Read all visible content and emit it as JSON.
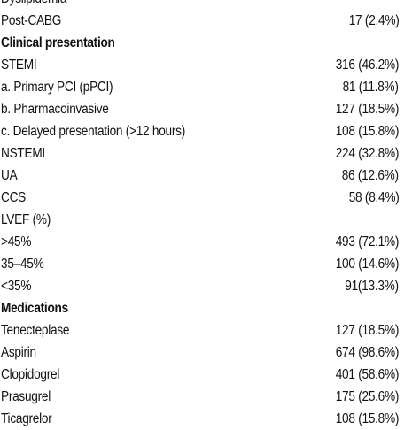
{
  "rows": [
    {
      "label": "Dyslipidemia",
      "value": "",
      "type": "cut"
    },
    {
      "label": "Post-CABG",
      "value": "17 (2.4%)",
      "type": "row"
    },
    {
      "label": "Clinical presentation",
      "value": "",
      "type": "section"
    },
    {
      "label": "STEMI",
      "value": "316 (46.2%)",
      "type": "row"
    },
    {
      "label": "a. Primary PCI (pPCI)",
      "value": "81 (11.8%)",
      "type": "row"
    },
    {
      "label": "b. Pharmacoinvasive",
      "value": "127 (18.5%)",
      "type": "row"
    },
    {
      "label": "c. Delayed presentation (>12 hours)",
      "value": "108 (15.8%)",
      "type": "row"
    },
    {
      "label": "NSTEMI",
      "value": "224 (32.8%)",
      "type": "row"
    },
    {
      "label": "UA",
      "value": "86 (12.6%)",
      "type": "row"
    },
    {
      "label": "CCS",
      "value": "58 (8.4%)",
      "type": "row"
    },
    {
      "label": "LVEF (%)",
      "value": "",
      "type": "row"
    },
    {
      "label": ">45%",
      "value": "493 (72.1%)",
      "type": "row"
    },
    {
      "label": "35–45%",
      "value": "100 (14.6%)",
      "type": "row"
    },
    {
      "label": "<35%",
      "value": "91(13.3%)",
      "type": "row"
    },
    {
      "label": "Medications",
      "value": "",
      "type": "section"
    },
    {
      "label": "Tenecteplase",
      "value": "127 (18.5%)",
      "type": "row"
    },
    {
      "label": "Aspirin",
      "value": "674 (98.6%)",
      "type": "row"
    },
    {
      "label": "Clopidogrel",
      "value": "401 (58.6%)",
      "type": "row"
    },
    {
      "label": "Prasugrel",
      "value": "175 (25.6%)",
      "type": "row"
    },
    {
      "label": "Ticagrelor",
      "value": "108 (15.8%)",
      "type": "row"
    }
  ]
}
